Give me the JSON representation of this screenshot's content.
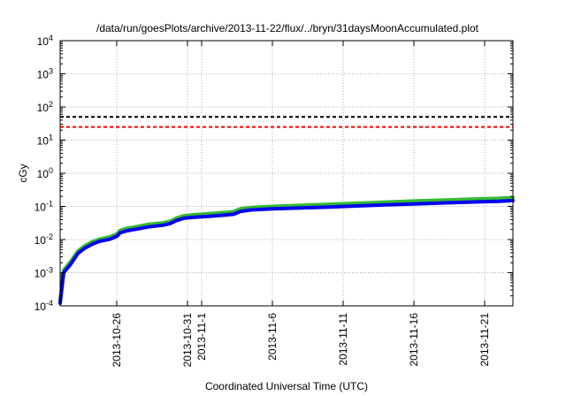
{
  "chart_data": {
    "type": "line",
    "title": "/data/run/goesPlots/archive/2013-11-22/flux/../bryn/31daysMoonAccumulated.plot",
    "xlabel": "Coordinated Universal Time (UTC)",
    "ylabel": "cGy",
    "y_scale": "log",
    "ylim": [
      0.0001,
      10000
    ],
    "y_ticks": [
      {
        "value": 0.0001,
        "base": "10",
        "exp": "-4"
      },
      {
        "value": 0.001,
        "base": "10",
        "exp": "-3"
      },
      {
        "value": 0.01,
        "base": "10",
        "exp": "-2"
      },
      {
        "value": 0.1,
        "base": "10",
        "exp": "-1"
      },
      {
        "value": 1,
        "base": "10",
        "exp": "0"
      },
      {
        "value": 10,
        "base": "10",
        "exp": "1"
      },
      {
        "value": 100,
        "base": "10",
        "exp": "2"
      },
      {
        "value": 1000,
        "base": "10",
        "exp": "3"
      },
      {
        "value": 10000,
        "base": "10",
        "exp": "4"
      }
    ],
    "xlim": [
      "2013-10-22",
      "2013-11-23"
    ],
    "x_ticks": [
      {
        "value": "2013-10-26",
        "label": "2013-10-26"
      },
      {
        "value": "2013-10-31",
        "label": "2013-10-31"
      },
      {
        "value": "2013-11-01",
        "label": "2013-11-1"
      },
      {
        "value": "2013-11-06",
        "label": "2013-11-6"
      },
      {
        "value": "2013-11-11",
        "label": "2013-11-11"
      },
      {
        "value": "2013-11-16",
        "label": "2013-11-16"
      },
      {
        "value": "2013-11-21",
        "label": "2013-11-21"
      }
    ],
    "grid": true,
    "legend": "none",
    "reference_lines": [
      {
        "y": 50,
        "color": "#000000",
        "style": "dashed"
      },
      {
        "y": 25,
        "color": "#ff0000",
        "style": "dashed"
      }
    ],
    "series": [
      {
        "color": "#33bb33",
        "points": [
          [
            "2013-10-22T00:00",
            0.00015
          ],
          [
            "2013-10-22T06:00",
            0.0012
          ],
          [
            "2013-10-22T18:00",
            0.0022
          ],
          [
            "2013-10-23T06:00",
            0.0045
          ],
          [
            "2013-10-23T18:00",
            0.0065
          ],
          [
            "2013-10-24T06:00",
            0.0085
          ],
          [
            "2013-10-24T18:00",
            0.0102
          ],
          [
            "2013-10-25T12:00",
            0.012
          ],
          [
            "2013-10-26T00:00",
            0.0145
          ],
          [
            "2013-10-26T06:00",
            0.019
          ],
          [
            "2013-10-26T18:00",
            0.022
          ],
          [
            "2013-10-27T12:00",
            0.025
          ],
          [
            "2013-10-28T06:00",
            0.029
          ],
          [
            "2013-10-29T06:00",
            0.032
          ],
          [
            "2013-10-29T18:00",
            0.035
          ],
          [
            "2013-10-30T06:00",
            0.045
          ],
          [
            "2013-10-30T18:00",
            0.052
          ],
          [
            "2013-10-31T12:00",
            0.056
          ],
          [
            "2013-11-01T12:00",
            0.06
          ],
          [
            "2013-11-02T12:00",
            0.065
          ],
          [
            "2013-11-03T06:00",
            0.069
          ],
          [
            "2013-11-03T18:00",
            0.085
          ],
          [
            "2013-11-04T12:00",
            0.093
          ],
          [
            "2013-11-06T00:00",
            0.1
          ],
          [
            "2013-11-08T00:00",
            0.108
          ],
          [
            "2013-11-10T00:00",
            0.116
          ],
          [
            "2013-11-12T00:00",
            0.125
          ],
          [
            "2013-11-14T00:00",
            0.135
          ],
          [
            "2013-11-16T00:00",
            0.145
          ],
          [
            "2013-11-18T00:00",
            0.155
          ],
          [
            "2013-11-20T00:00",
            0.165
          ],
          [
            "2013-11-22T00:00",
            0.175
          ],
          [
            "2013-11-23T00:00",
            0.185
          ]
        ]
      },
      {
        "color": "#0000ee",
        "points": [
          [
            "2013-10-22T00:00",
            0.00012
          ],
          [
            "2013-10-22T06:00",
            0.001
          ],
          [
            "2013-10-22T18:00",
            0.0018
          ],
          [
            "2013-10-23T06:00",
            0.0038
          ],
          [
            "2013-10-23T18:00",
            0.0055
          ],
          [
            "2013-10-24T06:00",
            0.0072
          ],
          [
            "2013-10-24T18:00",
            0.0088
          ],
          [
            "2013-10-25T12:00",
            0.0102
          ],
          [
            "2013-10-26T00:00",
            0.0125
          ],
          [
            "2013-10-26T06:00",
            0.016
          ],
          [
            "2013-10-26T18:00",
            0.0185
          ],
          [
            "2013-10-27T12:00",
            0.021
          ],
          [
            "2013-10-28T06:00",
            0.024
          ],
          [
            "2013-10-29T06:00",
            0.027
          ],
          [
            "2013-10-29T18:00",
            0.03
          ],
          [
            "2013-10-30T06:00",
            0.038
          ],
          [
            "2013-10-30T18:00",
            0.044
          ],
          [
            "2013-10-31T12:00",
            0.047
          ],
          [
            "2013-11-01T12:00",
            0.05
          ],
          [
            "2013-11-02T12:00",
            0.054
          ],
          [
            "2013-11-03T06:00",
            0.058
          ],
          [
            "2013-11-03T18:00",
            0.071
          ],
          [
            "2013-11-04T12:00",
            0.078
          ],
          [
            "2013-11-06T00:00",
            0.084
          ],
          [
            "2013-11-08T00:00",
            0.09
          ],
          [
            "2013-11-10T00:00",
            0.096
          ],
          [
            "2013-11-12T00:00",
            0.103
          ],
          [
            "2013-11-14T00:00",
            0.111
          ],
          [
            "2013-11-16T00:00",
            0.119
          ],
          [
            "2013-11-18T00:00",
            0.127
          ],
          [
            "2013-11-20T00:00",
            0.135
          ],
          [
            "2013-11-22T00:00",
            0.143
          ],
          [
            "2013-11-23T00:00",
            0.15
          ]
        ]
      }
    ]
  }
}
